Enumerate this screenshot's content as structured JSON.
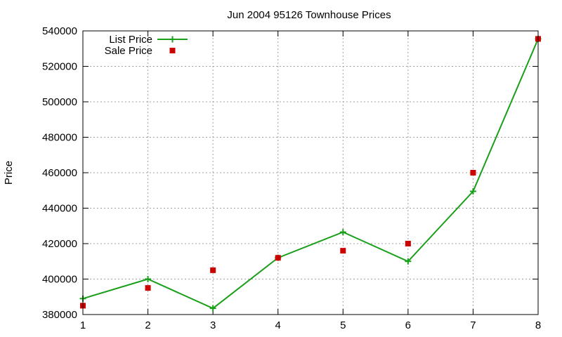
{
  "chart_data": {
    "type": "line",
    "title": "Jun 2004 95126 Townhouse Prices",
    "xlabel": "",
    "ylabel": "Price",
    "xlim": [
      1,
      8
    ],
    "ylim": [
      380000,
      540000
    ],
    "x_ticks": [
      1,
      2,
      3,
      4,
      5,
      6,
      7,
      8
    ],
    "y_ticks": [
      380000,
      400000,
      420000,
      440000,
      460000,
      480000,
      500000,
      520000,
      540000
    ],
    "grid": true,
    "legend_position": "top-left",
    "series": [
      {
        "name": "List Price",
        "style": "line-with-plus-markers",
        "color": "#1a9f1a",
        "x": [
          1,
          2,
          3,
          4,
          5,
          6,
          7,
          8
        ],
        "values": [
          389000,
          400000,
          383500,
          412000,
          426500,
          410000,
          449500,
          535500
        ]
      },
      {
        "name": "Sale Price",
        "style": "square-markers",
        "color": "#cc0000",
        "x": [
          1,
          2,
          3,
          4,
          5,
          6,
          7,
          8
        ],
        "values": [
          385000,
          395000,
          405000,
          412000,
          416000,
          420000,
          460000,
          535500
        ]
      }
    ]
  }
}
